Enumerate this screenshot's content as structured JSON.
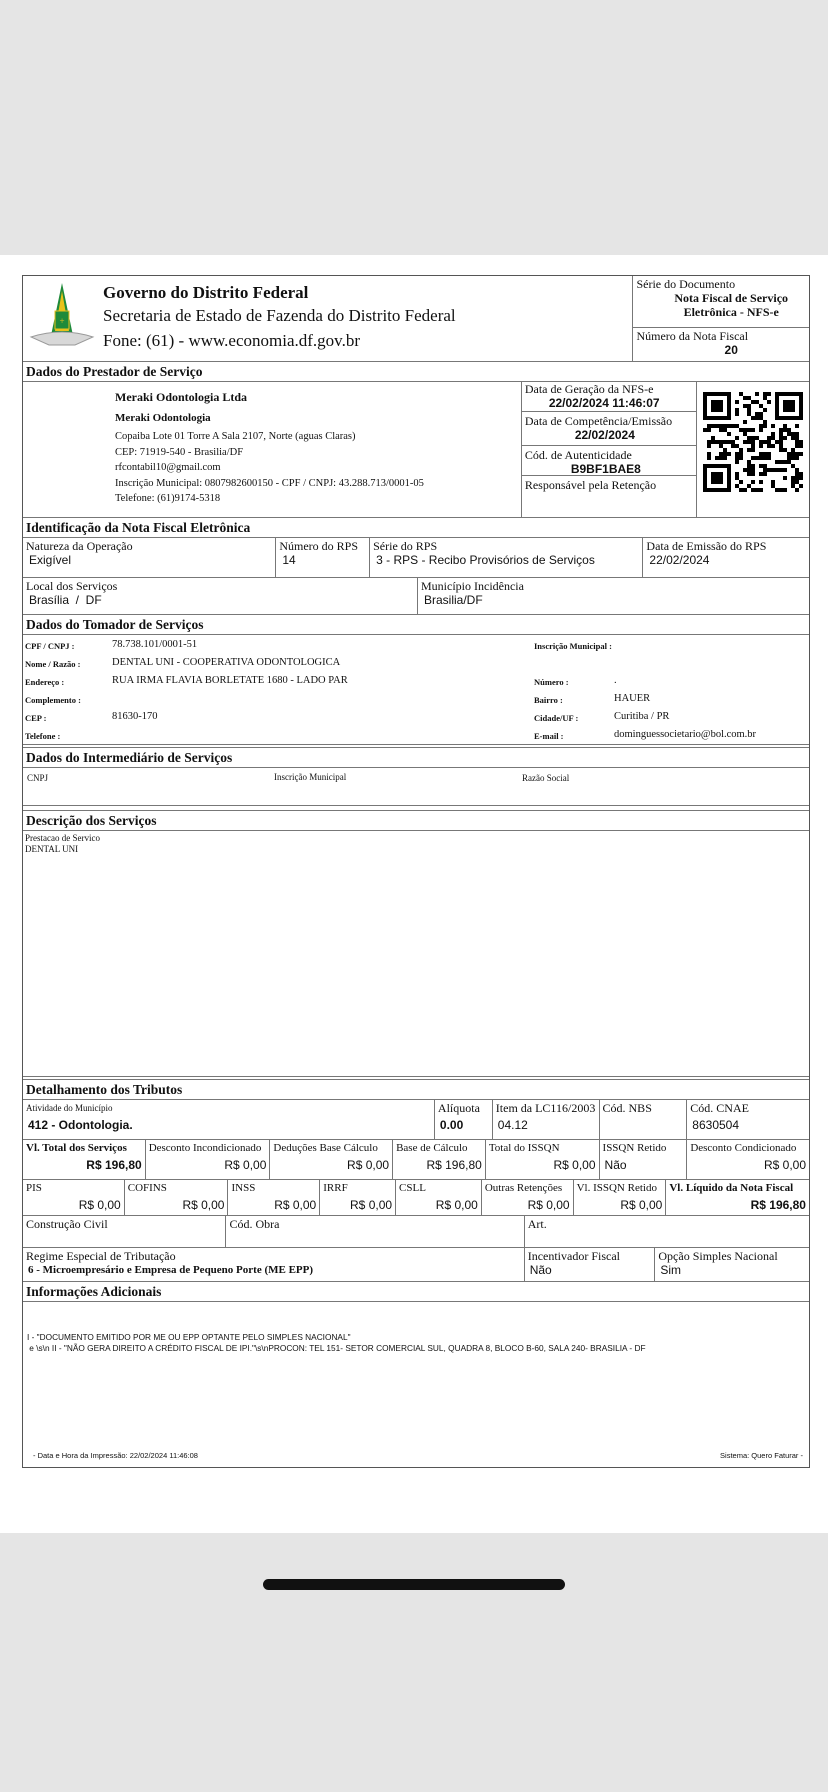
{
  "header": {
    "gov": "Governo do Distrito Federal",
    "secretaria": "Secretaria de Estado de Fazenda do Distrito Federal",
    "fone": "Fone: (61) - www.economia.df.gov.br",
    "serie_label": "Série do Documento",
    "serie_value_1": "Nota Fiscal de Serviço",
    "serie_value_2": "Eletrônica - NFS-e",
    "numero_label": "Número da Nota Fiscal",
    "numero_value": "20"
  },
  "prestador": {
    "title": "Dados do Prestador de Serviço",
    "razao": "Meraki Odontologia Ltda",
    "fantasia": "Meraki Odontologia",
    "endereco": "Copaiba Lote 01 Torre A Sala 2107,  Norte (aguas Claras)",
    "cep": "CEP: 71919-540 - Brasilia/DF",
    "email": "rfcontabil10@gmail.com",
    "inscricao": "Inscrição Municipal: 0807982600150 - CPF / CNPJ: 43.288.713/0001-05",
    "telefone": "Telefone: (61)9174-5318",
    "geracao_label": "Data de Geração da NFS-e",
    "geracao_value": "22/02/2024 11:46:07",
    "competencia_label": "Data de Competência/Emissão",
    "competencia_value": "22/02/2024",
    "autenticidade_label": "Cód. de Autenticidade",
    "autenticidade_value": "B9BF1BAE8",
    "retencao_label": "Responsável pela Retenção"
  },
  "identificacao": {
    "title": "Identificação da Nota Fiscal Eletrônica",
    "natureza_label": "Natureza da Operação",
    "natureza_value": "Exigível",
    "numero_rps_label": "Número do RPS",
    "numero_rps_value": "14",
    "serie_rps_label": "Série do RPS",
    "serie_rps_value": "3 - RPS - Recibo Provisórios de Serviços",
    "data_rps_label": "Data de Emissão do RPS",
    "data_rps_value": "22/02/2024",
    "local_label": "Local dos Serviços",
    "local_value": "Brasília  /  DF",
    "municipio_label": "Município Incidência",
    "municipio_value": "Brasilia/DF"
  },
  "tomador": {
    "title": "Dados do Tomador de Serviços",
    "cpf_label": "CPF / CNPJ :",
    "cpf_value": "78.738.101/0001-51",
    "nome_label": "Nome / Razão :",
    "nome_value": "DENTAL UNI - COOPERATIVA ODONTOLOGICA",
    "endereco_label": "Endereço :",
    "endereco_value": "RUA IRMA FLAVIA BORLETATE 1680 - LADO PAR",
    "complemento_label": "Complemento :",
    "cep_label": "CEP :",
    "cep_value": "81630-170",
    "telefone_label": "Telefone :",
    "im_label": "Inscrição Municipal :",
    "numero_label": "Número :",
    "numero_value": ".",
    "bairro_label": "Bairro :",
    "bairro_value": "HAUER",
    "cidade_label": "Cidade/UF :",
    "cidade_value": "Curitiba / PR",
    "email_label": "E-mail :",
    "email_value": "dominguessocietario@bol.com.br"
  },
  "intermediario": {
    "title": "Dados do Intermediário de Serviços",
    "cnpj_label": "CNPJ",
    "im_label": "Inscrição Municipal",
    "razao_label": "Razão Social"
  },
  "descricao": {
    "title": "Descrição dos Serviços",
    "line1": "Prestacao de Servico",
    "line2": "DENTAL UNI"
  },
  "tributos": {
    "title": "Detalhamento dos Tributos",
    "row1": [
      {
        "label": "Atividade do Município",
        "value": "412 - Odontologia."
      },
      {
        "label": "Alíquota",
        "value": "0.00"
      },
      {
        "label": "Item da LC116/2003",
        "value": "04.12"
      },
      {
        "label": "Cód. NBS",
        "value": ""
      },
      {
        "label": "Cód. CNAE",
        "value": "8630504"
      }
    ],
    "row2": [
      {
        "label": "Vl. Total dos Serviços",
        "value": "R$ 196,80"
      },
      {
        "label": "Desconto Incondicionado",
        "value": "R$ 0,00"
      },
      {
        "label": "Deduções Base Cálculo",
        "value": "R$ 0,00"
      },
      {
        "label": "Base de Cálculo",
        "value": "R$ 196,80"
      },
      {
        "label": "Total do ISSQN",
        "value": "R$ 0,00"
      },
      {
        "label": "ISSQN Retido",
        "value": "Não"
      },
      {
        "label": "Desconto Condicionado",
        "value": "R$ 0,00"
      }
    ],
    "row3": [
      {
        "label": "PIS",
        "value": "R$ 0,00"
      },
      {
        "label": "COFINS",
        "value": "R$ 0,00"
      },
      {
        "label": "INSS",
        "value": "R$ 0,00"
      },
      {
        "label": "IRRF",
        "value": "R$ 0,00"
      },
      {
        "label": "CSLL",
        "value": "R$ 0,00"
      },
      {
        "label": "Outras Retenções",
        "value": "R$ 0,00"
      },
      {
        "label": "Vl. ISSQN Retido",
        "value": "R$ 0,00"
      },
      {
        "label": "Vl. Líquido da Nota Fiscal",
        "value": "R$ 196,80"
      }
    ],
    "row4": [
      {
        "label": "Construção Civil"
      },
      {
        "label": "Cód. Obra"
      },
      {
        "label": "Art."
      }
    ],
    "row5": [
      {
        "label": "Regime Especial de Tributação",
        "value": "6 - Microempresário e Empresa de Pequeno Porte (ME EPP)"
      },
      {
        "label": "Incentivador Fiscal",
        "value": "Não"
      },
      {
        "label": "Opção Simples Nacional",
        "value": "Sim"
      }
    ]
  },
  "informacoes": {
    "title": "Informações Adicionais",
    "line1": "I - \"DOCUMENTO EMITIDO POR ME OU EPP OPTANTE PELO SIMPLES NACIONAL\"",
    "line2": " e \\s\\n II - \"NÃO GERA DIREITO A CRÉDITO FISCAL DE IPI.\"\\s\\nPROCON: TEL 151- SETOR COMERCIAL SUL, QUADRA 8, BLOCO B-60, SALA 240- BRASILIA - DF",
    "impressao": "- Data e Hora da Impressão: 22/02/2024  11:46:08",
    "sistema": "Sistema: Quero Faturar -"
  }
}
